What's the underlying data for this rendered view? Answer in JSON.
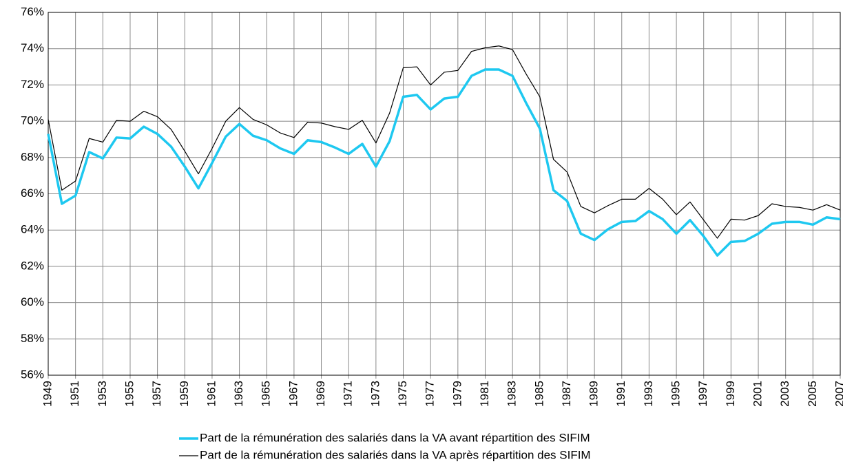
{
  "chart_data": {
    "type": "line",
    "x": [
      1949,
      1950,
      1951,
      1952,
      1953,
      1954,
      1955,
      1956,
      1957,
      1958,
      1959,
      1960,
      1961,
      1962,
      1963,
      1964,
      1965,
      1966,
      1967,
      1968,
      1969,
      1970,
      1971,
      1972,
      1973,
      1974,
      1975,
      1976,
      1977,
      1978,
      1979,
      1980,
      1981,
      1982,
      1983,
      1984,
      1985,
      1986,
      1987,
      1988,
      1989,
      1990,
      1991,
      1992,
      1993,
      1994,
      1995,
      1996,
      1997,
      1998,
      1999,
      2000,
      2001,
      2002,
      2003,
      2004,
      2005,
      2006,
      2007
    ],
    "series": [
      {
        "name": "Part de la rémunération des salariés dans la VA avant répartition des SIFIM",
        "color": "#1ec8f0",
        "width": 3.5,
        "values": [
          69.3,
          65.45,
          65.9,
          68.3,
          67.95,
          69.1,
          69.05,
          69.7,
          69.3,
          68.6,
          67.5,
          66.3,
          67.7,
          69.15,
          69.85,
          69.2,
          68.95,
          68.5,
          68.2,
          68.95,
          68.85,
          68.55,
          68.2,
          68.75,
          67.5,
          68.9,
          71.35,
          71.45,
          70.65,
          71.25,
          71.35,
          72.5,
          72.85,
          72.85,
          72.5,
          71.0,
          69.6,
          66.2,
          65.6,
          63.8,
          63.45,
          64.05,
          64.45,
          64.5,
          65.05,
          64.6,
          63.8,
          64.55,
          63.65,
          62.6,
          63.35,
          63.4,
          63.8,
          64.35,
          64.45,
          64.45,
          64.3,
          64.7,
          64.6
        ]
      },
      {
        "name": "Part de la rémunération des salariés dans la VA après répartition des SIFIM",
        "color": "#000000",
        "width": 1.2,
        "values": [
          70.1,
          66.2,
          66.7,
          69.05,
          68.85,
          70.05,
          70.0,
          70.55,
          70.25,
          69.55,
          68.35,
          67.1,
          68.5,
          70.0,
          70.75,
          70.1,
          69.8,
          69.35,
          69.1,
          69.95,
          69.9,
          69.7,
          69.55,
          70.05,
          68.8,
          70.45,
          72.95,
          73.0,
          72.0,
          72.7,
          72.8,
          73.85,
          74.05,
          74.15,
          73.95,
          72.6,
          71.35,
          67.9,
          67.2,
          65.3,
          64.95,
          65.35,
          65.7,
          65.7,
          66.3,
          65.7,
          64.85,
          65.55,
          64.55,
          63.55,
          64.6,
          64.55,
          64.8,
          65.45,
          65.3,
          65.25,
          65.1,
          65.4,
          65.1
        ]
      }
    ],
    "xlim": [
      1949,
      2007
    ],
    "xticks": [
      1949,
      1951,
      1953,
      1955,
      1957,
      1959,
      1961,
      1963,
      1965,
      1967,
      1969,
      1971,
      1973,
      1975,
      1977,
      1979,
      1981,
      1983,
      1985,
      1987,
      1989,
      1991,
      1993,
      1995,
      1997,
      1999,
      2001,
      2003,
      2005,
      2007
    ],
    "ylim": [
      56,
      76
    ],
    "yticks": [
      {
        "value": 56,
        "label": "56%"
      },
      {
        "value": 58,
        "label": "58%"
      },
      {
        "value": 60,
        "label": "60%"
      },
      {
        "value": 62,
        "label": "62%"
      },
      {
        "value": 64,
        "label": "64%"
      },
      {
        "value": 66,
        "label": "66%"
      },
      {
        "value": 68,
        "label": "68%"
      },
      {
        "value": 70,
        "label": "70%"
      },
      {
        "value": 72,
        "label": "72%"
      },
      {
        "value": 74,
        "label": "74%"
      },
      {
        "value": 76,
        "label": "76%"
      }
    ],
    "grid": true,
    "legend": "bottom"
  }
}
